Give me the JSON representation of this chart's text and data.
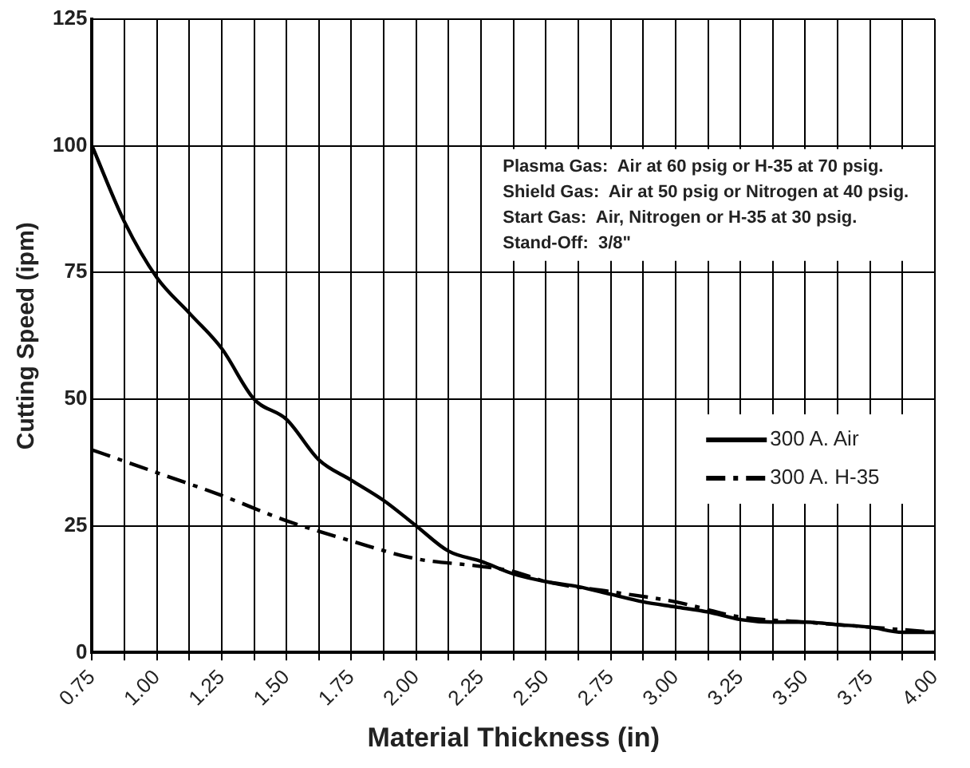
{
  "chart_data": {
    "type": "line",
    "xlabel": "Material Thickness (in)",
    "ylabel": "Cutting Speed (ipm)",
    "xlim": [
      0.75,
      4.0
    ],
    "ylim": [
      0,
      125
    ],
    "xticks": [
      {
        "value": 0.75,
        "label": "0.75"
      },
      {
        "value": 0.875,
        "label": null
      },
      {
        "value": 1.0,
        "label": "1.00"
      },
      {
        "value": 1.125,
        "label": null
      },
      {
        "value": 1.25,
        "label": "1.25"
      },
      {
        "value": 1.375,
        "label": null
      },
      {
        "value": 1.5,
        "label": "1.50"
      },
      {
        "value": 1.625,
        "label": null
      },
      {
        "value": 1.75,
        "label": "1.75"
      },
      {
        "value": 1.875,
        "label": null
      },
      {
        "value": 2.0,
        "label": "2.00"
      },
      {
        "value": 2.125,
        "label": null
      },
      {
        "value": 2.25,
        "label": "2.25"
      },
      {
        "value": 2.375,
        "label": null
      },
      {
        "value": 2.5,
        "label": "2.50"
      },
      {
        "value": 2.625,
        "label": null
      },
      {
        "value": 2.75,
        "label": "2.75"
      },
      {
        "value": 2.875,
        "label": null
      },
      {
        "value": 3.0,
        "label": "3.00"
      },
      {
        "value": 3.125,
        "label": null
      },
      {
        "value": 3.25,
        "label": "3.25"
      },
      {
        "value": 3.375,
        "label": null
      },
      {
        "value": 3.5,
        "label": "3.50"
      },
      {
        "value": 3.625,
        "label": null
      },
      {
        "value": 3.75,
        "label": "3.75"
      },
      {
        "value": 3.875,
        "label": null
      },
      {
        "value": 4.0,
        "label": "4.00"
      }
    ],
    "yticks": [
      0,
      25,
      50,
      75,
      100,
      125
    ],
    "grid": true,
    "legend": "right",
    "marker": "none",
    "annotations": [
      "Plasma Gas:  Air at 60 psig or H-35 at 70 psig.",
      "Shield Gas:  Air at 50 psig or Nitrogen at 40 psig.",
      "Start Gas:  Air, Nitrogen or H-35 at 30 psig.",
      "Stand-Off:  3/8\""
    ],
    "series": [
      {
        "name": "300 A. Air",
        "color": "#000000",
        "line_style": "solid",
        "x": [
          0.75,
          0.875,
          1.0,
          1.125,
          1.25,
          1.375,
          1.5,
          1.625,
          1.75,
          1.875,
          2.0,
          2.125,
          2.25,
          2.375,
          2.5,
          2.625,
          2.75,
          2.875,
          3.0,
          3.125,
          3.25,
          3.375,
          3.5,
          3.625,
          3.75,
          3.875,
          4.0
        ],
        "values": [
          100,
          85,
          74,
          67,
          60,
          50,
          46,
          38,
          34,
          30,
          25,
          20,
          18,
          15.5,
          14,
          13,
          11.5,
          10,
          9,
          8,
          6.5,
          6,
          6,
          5.5,
          5,
          4,
          4
        ]
      },
      {
        "name": "300 A. H-35",
        "color": "#000000",
        "line_style": "dashed",
        "x": [
          0.75,
          1.0,
          1.25,
          1.5,
          1.75,
          2.0,
          2.25,
          2.375,
          2.5,
          2.75,
          3.0,
          3.25,
          3.5,
          3.75,
          4.0
        ],
        "values": [
          40,
          35.5,
          31,
          26,
          22,
          18.5,
          17,
          16,
          14,
          12,
          10,
          7,
          6,
          5,
          4
        ]
      }
    ]
  }
}
